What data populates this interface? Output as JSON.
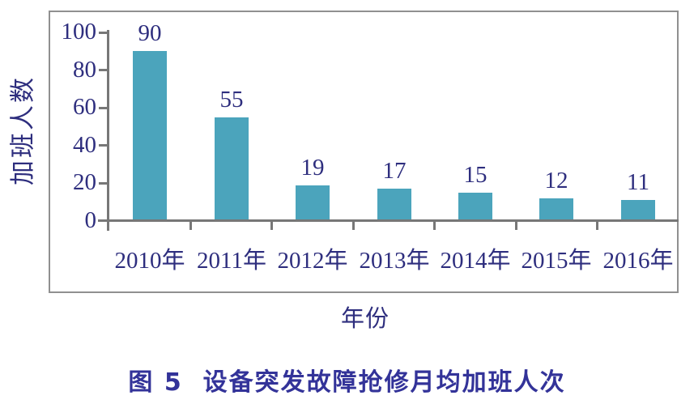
{
  "caption": "图 5  设备突发故障抢修月均加班人次",
  "chart_data": {
    "type": "bar",
    "title": "设备突发故障抢修月均加班人次",
    "categories": [
      "2010年",
      "2011年",
      "2012年",
      "2013年",
      "2014年",
      "2015年",
      "2016年"
    ],
    "values": [
      90,
      55,
      19,
      17,
      15,
      12,
      11
    ],
    "xlabel": "年份",
    "ylabel": "加班人数",
    "ylim": [
      0,
      100
    ],
    "yticks": [
      0,
      20,
      40,
      60,
      80,
      100
    ],
    "grid": false,
    "legend": "none",
    "data_labels": true,
    "colors": {
      "bar": "#4ba4bc",
      "axis": "#777777",
      "frame": "#909090",
      "label": "#2e2e7e",
      "caption": "#333399"
    }
  }
}
